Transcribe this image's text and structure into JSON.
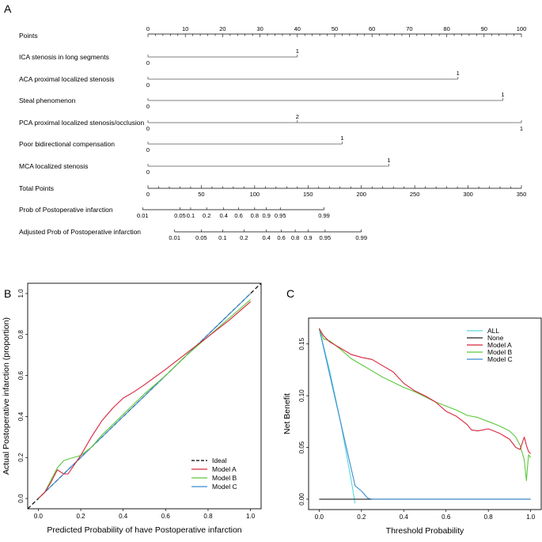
{
  "panel_labels": {
    "a": "A",
    "b": "B",
    "c": "C"
  },
  "colors": {
    "ideal": "#000000",
    "model_a": "#d7263d",
    "model_b": "#5bc83a",
    "model_c": "#3a8bd0",
    "all": "#58d7dc",
    "none": "#222222"
  },
  "chart_data": [
    {
      "type": "nomogram",
      "panel": "A",
      "rows": [
        {
          "label": "Points",
          "kind": "points_scale",
          "min": 0,
          "max": 100,
          "major_ticks": [
            0,
            10,
            20,
            30,
            40,
            50,
            60,
            70,
            80,
            90,
            100
          ],
          "tick_labels": [
            "0",
            "10",
            "20",
            "30",
            "40",
            "50",
            "60",
            "70",
            "80",
            "90",
            "100"
          ]
        },
        {
          "label": "ICA stenosis in long segments",
          "kind": "variable",
          "levels": [
            {
              "text": "0",
              "points": 0,
              "pos": "below"
            },
            {
              "text": "1",
              "points": 40,
              "pos": "above"
            }
          ]
        },
        {
          "label": "ACA proximal localized stenosis",
          "kind": "variable",
          "levels": [
            {
              "text": "0",
              "points": 0,
              "pos": "below"
            },
            {
              "text": "1",
              "points": 83,
              "pos": "above"
            }
          ]
        },
        {
          "label": "Steal phenomenon",
          "kind": "variable",
          "levels": [
            {
              "text": "0",
              "points": 0,
              "pos": "below"
            },
            {
              "text": "1",
              "points": 95,
              "pos": "above"
            }
          ]
        },
        {
          "label": "PCA proximal localized stenosis/occlusion",
          "kind": "variable",
          "levels": [
            {
              "text": "0",
              "points": 0,
              "pos": "below"
            },
            {
              "text": "2",
              "points": 40,
              "pos": "above"
            },
            {
              "text": "1",
              "points": 100,
              "pos": "below"
            }
          ]
        },
        {
          "label": "Poor bidirectional compensation",
          "kind": "variable",
          "levels": [
            {
              "text": "0",
              "points": 0,
              "pos": "below"
            },
            {
              "text": "1",
              "points": 52,
              "pos": "above"
            }
          ]
        },
        {
          "label": "MCA localized stenosis",
          "kind": "variable",
          "levels": [
            {
              "text": "0",
              "points": 0,
              "pos": "below"
            },
            {
              "text": "1",
              "points": 64.5,
              "pos": "above"
            }
          ]
        },
        {
          "label": "Total Points",
          "kind": "total_scale",
          "min": 0,
          "max": 350,
          "tick_labels": [
            "0",
            "50",
            "100",
            "150",
            "200",
            "250",
            "300",
            "350"
          ],
          "tick_values": [
            0,
            50,
            100,
            150,
            200,
            250,
            300,
            350
          ]
        },
        {
          "label": "Prob of Postoperative infarction",
          "kind": "prob_scale",
          "ticks": [
            {
              "text": "0.01",
              "total": -5
            },
            {
              "text": "0.05",
              "total": 30
            },
            {
              "text": "0.1",
              "total": 40
            },
            {
              "text": "0.2",
              "total": 55
            },
            {
              "text": "0.4",
              "total": 71
            },
            {
              "text": "0.6",
              "total": 85
            },
            {
              "text": "0.8",
              "total": 100
            },
            {
              "text": "0.9",
              "total": 111
            },
            {
              "text": "0.95",
              "total": 124
            },
            {
              "text": "0.99",
              "total": 165
            }
          ]
        },
        {
          "label": "Adjusted Prob of Postoperative infarction",
          "kind": "prob_scale",
          "ticks": [
            {
              "text": "0.01",
              "total": 25
            },
            {
              "text": "0.05",
              "total": 50
            },
            {
              "text": "0.1",
              "total": 70
            },
            {
              "text": "0.2",
              "total": 90
            },
            {
              "text": "0.4",
              "total": 111
            },
            {
              "text": "0.6",
              "total": 125
            },
            {
              "text": "0.8",
              "total": 138
            },
            {
              "text": "0.9",
              "total": 150
            },
            {
              "text": "0.95",
              "total": 166
            },
            {
              "text": "0.99",
              "total": 200
            }
          ]
        }
      ]
    },
    {
      "type": "line",
      "panel": "B",
      "title": "",
      "xlabel": "Predicted Probability of have Postoperative infarction",
      "ylabel": "Actual Postoperative infarction (proportion)",
      "xlim": [
        -0.05,
        1.05
      ],
      "ylim": [
        -0.05,
        1.05
      ],
      "x_ticks": [
        0.0,
        0.2,
        0.4,
        0.6,
        0.8,
        1.0
      ],
      "x_tick_labels": [
        "0.0",
        "0.2",
        "0.4",
        "0.6",
        "0.8",
        "1.0"
      ],
      "y_ticks": [
        0.0,
        0.2,
        0.4,
        0.6,
        0.8,
        1.0
      ],
      "y_tick_labels": [
        "0.0",
        "0.2",
        "0.4",
        "0.6",
        "0.8",
        "1.0"
      ],
      "legend": [
        "Ideal",
        "Model A",
        "Model B",
        "Model C"
      ],
      "legend_position": "bottom-right",
      "series": [
        {
          "name": "Ideal",
          "dash": true,
          "color_key": "ideal",
          "x": [
            -0.05,
            1.05
          ],
          "y": [
            -0.05,
            1.05
          ]
        },
        {
          "name": "Model C",
          "color_key": "model_c",
          "x": [
            0.0,
            0.2,
            0.4,
            0.6,
            0.8,
            1.0
          ],
          "y": [
            0.0,
            0.2,
            0.4,
            0.6,
            0.8,
            1.0
          ]
        },
        {
          "name": "Model B",
          "color_key": "model_b",
          "x": [
            0.0,
            0.03,
            0.06,
            0.09,
            0.12,
            0.15,
            0.2,
            0.25,
            0.3,
            0.35,
            0.4,
            0.45,
            0.5,
            0.6,
            0.7,
            0.8,
            0.9,
            1.0
          ],
          "y": [
            0.0,
            0.03,
            0.09,
            0.15,
            0.185,
            0.195,
            0.21,
            0.25,
            0.31,
            0.36,
            0.41,
            0.46,
            0.51,
            0.6,
            0.7,
            0.79,
            0.88,
            0.97
          ]
        },
        {
          "name": "Model A",
          "color_key": "model_a",
          "x": [
            0.0,
            0.03,
            0.06,
            0.09,
            0.12,
            0.14,
            0.16,
            0.2,
            0.25,
            0.3,
            0.35,
            0.4,
            0.45,
            0.5,
            0.6,
            0.7,
            0.8,
            0.9,
            1.0
          ],
          "y": [
            0.0,
            0.03,
            0.08,
            0.14,
            0.12,
            0.12,
            0.15,
            0.21,
            0.3,
            0.38,
            0.44,
            0.49,
            0.52,
            0.555,
            0.63,
            0.71,
            0.79,
            0.87,
            0.96
          ]
        }
      ]
    },
    {
      "type": "line",
      "panel": "C",
      "title": "",
      "xlabel": "Threshold Probability",
      "ylabel": "Net Benefit",
      "xlim": [
        -0.05,
        1.05
      ],
      "ylim": [
        -0.01,
        0.175
      ],
      "x_ticks": [
        0.0,
        0.2,
        0.4,
        0.6,
        0.8,
        1.0
      ],
      "x_tick_labels": [
        "0.0",
        "0.2",
        "0.4",
        "0.6",
        "0.8",
        "1.0"
      ],
      "y_ticks": [
        0.0,
        0.05,
        0.1,
        0.15
      ],
      "y_tick_labels": [
        "0.00",
        "0.05",
        "0.10",
        "0.15"
      ],
      "legend": [
        "ALL",
        "None",
        "Model A",
        "Model B",
        "Model C"
      ],
      "legend_position": "top-right",
      "series": [
        {
          "name": "ALL",
          "color_key": "all",
          "x": [
            0.0,
            0.05,
            0.1,
            0.15,
            0.17
          ],
          "y": [
            0.165,
            0.124,
            0.076,
            0.02,
            -0.004
          ]
        },
        {
          "name": "None",
          "color_key": "none",
          "x": [
            0.0,
            1.0
          ],
          "y": [
            0.0,
            0.0
          ]
        },
        {
          "name": "Model C",
          "color_key": "model_c",
          "x": [
            0.0,
            0.17,
            0.2,
            0.23,
            0.25,
            0.4,
            0.6,
            0.8,
            1.0
          ],
          "y": [
            0.165,
            0.013,
            0.008,
            0.001,
            0.0,
            0.0,
            0.0,
            0.0,
            0.0
          ]
        },
        {
          "name": "Model B",
          "color_key": "model_b",
          "x": [
            0.0,
            0.02,
            0.05,
            0.1,
            0.15,
            0.2,
            0.25,
            0.3,
            0.35,
            0.4,
            0.45,
            0.5,
            0.55,
            0.6,
            0.65,
            0.7,
            0.75,
            0.8,
            0.85,
            0.9,
            0.93,
            0.95,
            0.97,
            0.98,
            0.99,
            1.0
          ],
          "y": [
            0.165,
            0.155,
            0.153,
            0.145,
            0.136,
            0.13,
            0.124,
            0.118,
            0.113,
            0.108,
            0.104,
            0.099,
            0.094,
            0.09,
            0.086,
            0.081,
            0.079,
            0.075,
            0.071,
            0.066,
            0.06,
            0.052,
            0.038,
            0.018,
            0.043,
            0.04
          ]
        },
        {
          "name": "Model A",
          "color_key": "model_a",
          "x": [
            0.0,
            0.02,
            0.05,
            0.1,
            0.15,
            0.2,
            0.25,
            0.3,
            0.35,
            0.4,
            0.45,
            0.5,
            0.55,
            0.6,
            0.65,
            0.7,
            0.72,
            0.75,
            0.8,
            0.85,
            0.9,
            0.93,
            0.95,
            0.97,
            0.98,
            0.99,
            1.0
          ],
          "y": [
            0.165,
            0.158,
            0.152,
            0.146,
            0.14,
            0.137,
            0.135,
            0.129,
            0.123,
            0.112,
            0.105,
            0.1,
            0.094,
            0.085,
            0.08,
            0.072,
            0.067,
            0.066,
            0.068,
            0.064,
            0.058,
            0.05,
            0.048,
            0.06,
            0.052,
            0.046,
            0.044
          ]
        }
      ]
    }
  ]
}
